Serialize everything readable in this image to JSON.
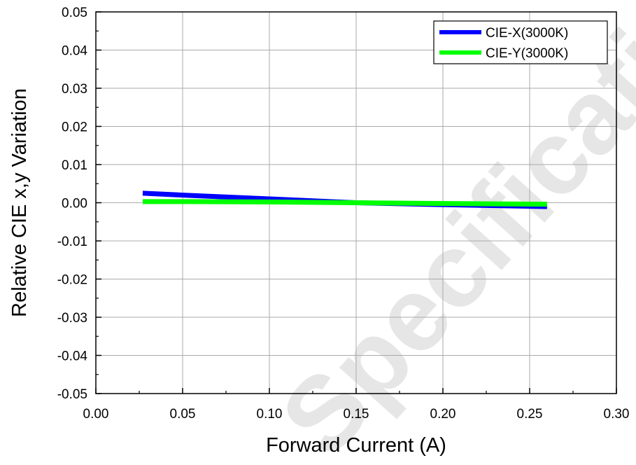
{
  "watermark": "Specification",
  "chart_data": {
    "type": "line",
    "title": "",
    "xlabel": "Forward Current (A)",
    "ylabel": "Relative CIE x,y Variation",
    "xlim": [
      0,
      0.3
    ],
    "ylim": [
      -0.05,
      0.05
    ],
    "x_ticks": [
      "0.00",
      "0.05",
      "0.10",
      "0.15",
      "0.20",
      "0.25",
      "0.30"
    ],
    "y_ticks": [
      "-0.05",
      "-0.04",
      "-0.03",
      "-0.02",
      "-0.01",
      "0.00",
      "0.01",
      "0.02",
      "0.03",
      "0.04",
      "0.05"
    ],
    "grid": true,
    "legend_position": "top-right",
    "series": [
      {
        "name": "CIE-X(3000K)",
        "color": "#0000ff",
        "x": [
          0.027,
          0.05,
          0.1,
          0.15,
          0.2,
          0.26
        ],
        "y": [
          0.0025,
          0.002,
          0.001,
          0.0,
          -0.0005,
          -0.001
        ]
      },
      {
        "name": "CIE-Y(3000K)",
        "color": "#00ff00",
        "x": [
          0.027,
          0.05,
          0.1,
          0.15,
          0.2,
          0.26
        ],
        "y": [
          0.0003,
          0.0003,
          0.0002,
          0.0,
          -0.0002,
          -0.0004
        ]
      }
    ]
  }
}
